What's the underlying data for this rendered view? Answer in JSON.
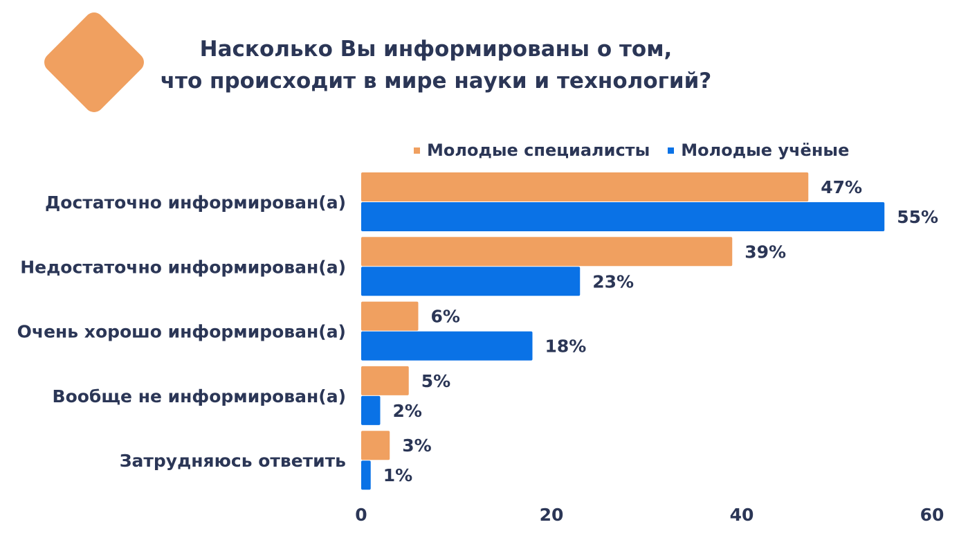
{
  "title_lines": [
    "Насколько Вы информированы о том,",
    "что происходит в мире науки и технологий?"
  ],
  "colors": {
    "text": "#2b3656",
    "accent_orange": "#f0a060",
    "accent_blue": "#0a72e6"
  },
  "chart_data": {
    "type": "bar",
    "orientation": "horizontal",
    "categories": [
      "Достаточно информирован(а)",
      "Недостаточно информирован(а)",
      "Очень хорошо информирован(а)",
      "Вообще не информирован(а)",
      "Затрудняюсь ответить"
    ],
    "series": [
      {
        "name": "Молодые специалисты",
        "color": "#f0a060",
        "values": [
          47,
          39,
          6,
          5,
          3
        ],
        "labels": [
          "47%",
          "39%",
          "6%",
          "5%",
          "3%"
        ]
      },
      {
        "name": "Молодые учёные",
        "color": "#0a72e6",
        "values": [
          55,
          23,
          18,
          2,
          1
        ],
        "labels": [
          "55%",
          "23%",
          "18%",
          "2%",
          "1%"
        ]
      }
    ],
    "xlim": [
      0,
      60
    ],
    "xticks": [
      "0",
      "20",
      "40",
      "60"
    ],
    "grid": false,
    "legend_position": "top-right"
  }
}
